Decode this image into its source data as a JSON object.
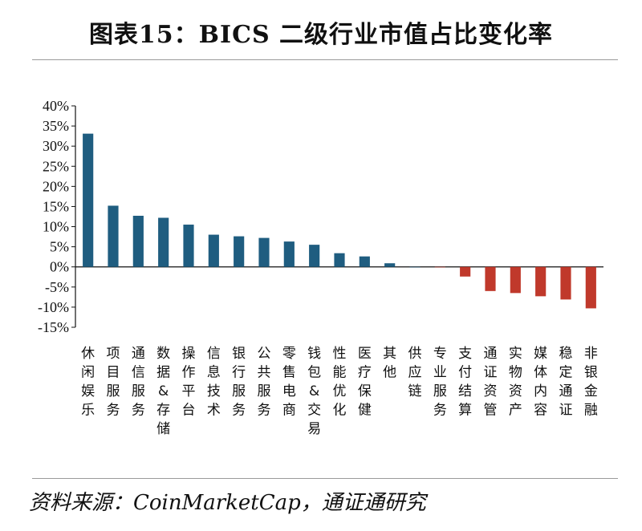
{
  "title": "图表15：BICS 二级行业市值占比变化率",
  "source": "资料来源：CoinMarketCap，通证通研究",
  "colors": {
    "positive": "#1f5d80",
    "negative": "#c0392b",
    "axis": "#111111"
  },
  "chart_data": {
    "type": "bar",
    "title": "图表15：BICS 二级行业市值占比变化率",
    "xlabel": "",
    "ylabel": "",
    "ylim": [
      -15,
      40
    ],
    "yticks": [
      "40%",
      "35%",
      "30%",
      "25%",
      "20%",
      "15%",
      "10%",
      "5%",
      "0%",
      "-5%",
      "-10%",
      "-15%"
    ],
    "grid": false,
    "categories": [
      "休闲娱乐",
      "项目服务",
      "通信服务",
      "数据&存储",
      "操作平台",
      "信息技术",
      "银行服务",
      "公共服务",
      "零售电商",
      "钱包&交易",
      "性能优化",
      "医疗保健",
      "其他",
      "供应链",
      "专业服务",
      "支付结算",
      "通证资管",
      "实物资产",
      "媒体内容",
      "稳定通证",
      "非银金融"
    ],
    "values": [
      33.1,
      15.2,
      12.7,
      12.2,
      10.5,
      8.0,
      7.6,
      7.2,
      6.3,
      5.5,
      3.4,
      2.6,
      0.9,
      0.0,
      -0.1,
      -2.4,
      -6.0,
      -6.5,
      -7.3,
      -8.1,
      -10.3
    ]
  }
}
